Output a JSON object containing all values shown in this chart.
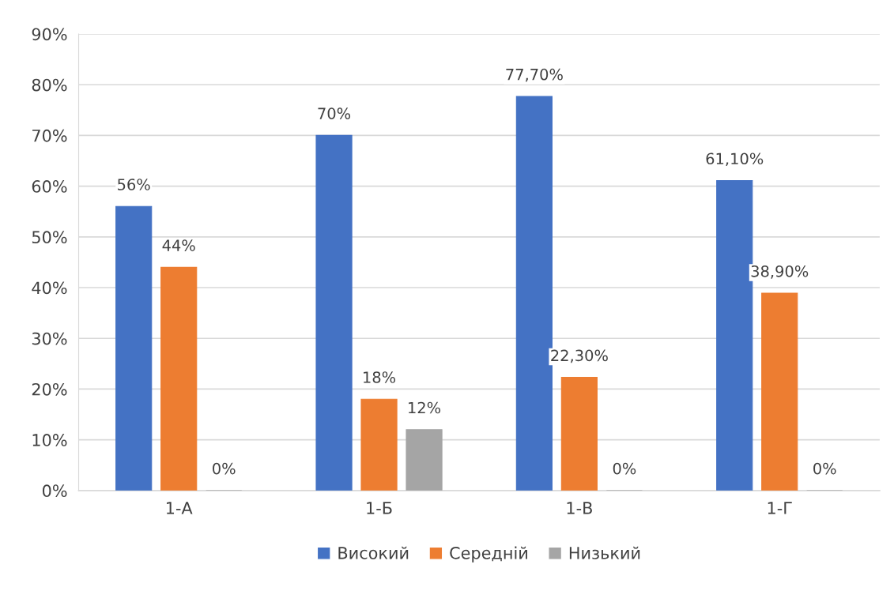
{
  "chart_data": {
    "type": "bar",
    "categories": [
      "1-А",
      "1-Б",
      "1-В",
      "1-Г"
    ],
    "series": [
      {
        "name": "Високий",
        "color": "#4472c4",
        "values": [
          56,
          70,
          77.7,
          61.1
        ],
        "value_labels": [
          "56%",
          "70%",
          "77,70%",
          "61,10%"
        ]
      },
      {
        "name": "Середній",
        "color": "#ed7d31",
        "values": [
          44,
          18,
          22.3,
          38.9
        ],
        "value_labels": [
          "44%",
          "18%",
          "22,30%",
          "38,90%"
        ]
      },
      {
        "name": "Низький",
        "color": "#a5a5a5",
        "values": [
          0,
          12,
          0,
          0
        ],
        "value_labels": [
          "0%",
          "12%",
          "0%",
          "0%"
        ]
      }
    ],
    "ylim": [
      0,
      90
    ],
    "yticks": [
      {
        "value": 0,
        "label": "0%"
      },
      {
        "value": 10,
        "label": "10%"
      },
      {
        "value": 20,
        "label": "20%"
      },
      {
        "value": 30,
        "label": "30%"
      },
      {
        "value": 40,
        "label": "40%"
      },
      {
        "value": 50,
        "label": "50%"
      },
      {
        "value": 60,
        "label": "60%"
      },
      {
        "value": 70,
        "label": "70%"
      },
      {
        "value": 80,
        "label": "80%"
      },
      {
        "value": 90,
        "label": "90%"
      }
    ],
    "grid": "y",
    "legend": "bottom"
  }
}
